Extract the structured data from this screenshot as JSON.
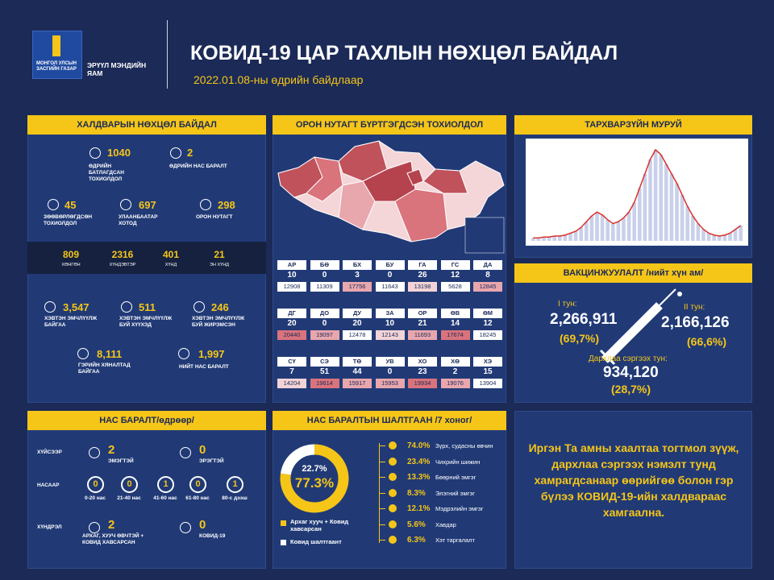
{
  "header": {
    "logo_text": "МОНГОЛ УЛСЫН ЗАСГИЙН ГАЗАР",
    "ministry": "ЭРҮҮЛ МЭНДИЙН ЯАМ",
    "title": "КОВИД-19 ЦАР ТАХЛЫН НӨХЦӨЛ БАЙДАЛ",
    "date": "2022.01.08-ны өдрийн байдлаар"
  },
  "infection": {
    "title": "ХАЛДВАРЫН НӨХЦӨЛ БАЙДАЛ",
    "stats": [
      {
        "value": 1040,
        "label": "ӨДРИЙН БАТЛАГДСАН ТОХИОЛДОЛ"
      },
      {
        "value": 2,
        "label": "ӨДРИЙН НАС БАРАЛТ"
      },
      {
        "value": 45,
        "label": "ЗӨӨВӨРЛӨГДСӨН ТОХИОЛДОЛ"
      },
      {
        "value": 697,
        "label": "УЛААНБААТАР ХОТОД"
      },
      {
        "value": 298,
        "label": "ОРОН НУТАГТ"
      }
    ],
    "severity": [
      {
        "value": 809,
        "label": "ХӨНГӨН"
      },
      {
        "value": 2316,
        "label": "ХҮНДЭВТЭР"
      },
      {
        "value": 401,
        "label": "ХҮНД"
      },
      {
        "value": 21,
        "label": "ЭН ХҮНД"
      }
    ],
    "care": [
      {
        "value": "3,547",
        "label": "ХЭВТЭН ЭМЧЛҮҮЛЖ БАЙГАА"
      },
      {
        "value": 511,
        "label": "ХЭВТЭН ЭМЧЛҮҮЛЖ БУЙ ХҮҮХЭД"
      },
      {
        "value": 246,
        "label": "ХЭВТЭН ЭМЧЛҮҮЛЖ БУЙ ЖИРЭМСЭН"
      },
      {
        "value": "8,111",
        "label": "ГЭРИЙН ХЯНАЛТАД БАЙГАА"
      },
      {
        "value": "1,997",
        "label": "НИЙТ НАС БАРАЛТ"
      }
    ]
  },
  "regions": {
    "title": "ОРОН НУТАГТ БҮРТГЭГДСЭН ТОХИОЛДОЛ",
    "aimags": [
      {
        "code": "АР",
        "cases": 10,
        "total": 12908,
        "color": "#ffffff"
      },
      {
        "code": "БӨ",
        "cases": 0,
        "total": 11309,
        "color": "#ffffff"
      },
      {
        "code": "БХ",
        "cases": 3,
        "total": 17756,
        "color": "#e8a6ad"
      },
      {
        "code": "БУ",
        "cases": 0,
        "total": 11643,
        "color": "#ffffff"
      },
      {
        "code": "ГА",
        "cases": 26,
        "total": 13198,
        "color": "#f3d3d6"
      },
      {
        "code": "ГС",
        "cases": 12,
        "total": 5628,
        "color": "#ffffff"
      },
      {
        "code": "ДА",
        "cases": 8,
        "total": 12845,
        "color": "#e8a6ad"
      },
      {
        "code": "ДГ",
        "cases": 20,
        "total": 20440,
        "color": "#d9737c"
      },
      {
        "code": "ДО",
        "cases": 0,
        "total": 19097,
        "color": "#e8a6ad"
      },
      {
        "code": "ДУ",
        "cases": 20,
        "total": 12478,
        "color": "#ffffff"
      },
      {
        "code": "ЗА",
        "cases": 10,
        "total": 12143,
        "color": "#f3d3d6"
      },
      {
        "code": "ОР",
        "cases": 21,
        "total": 11693,
        "color": "#e8a6ad"
      },
      {
        "code": "ӨВ",
        "cases": 14,
        "total": 17674,
        "color": "#d9737c"
      },
      {
        "code": "ӨМ",
        "cases": 12,
        "total": 18245,
        "color": "#ffffff"
      },
      {
        "code": "СҮ",
        "cases": 7,
        "total": 14204,
        "color": "#f3d3d6"
      },
      {
        "code": "СЭ",
        "cases": 51,
        "total": 19614,
        "color": "#d9737c"
      },
      {
        "code": "ТӨ",
        "cases": 44,
        "total": 15917,
        "color": "#e8a6ad"
      },
      {
        "code": "УВ",
        "cases": 0,
        "total": 15953,
        "color": "#e8a6ad"
      },
      {
        "code": "ХО",
        "cases": 23,
        "total": 19934,
        "color": "#d9737c"
      },
      {
        "code": "ХӨ",
        "cases": 2,
        "total": 19076,
        "color": "#e8a6ad"
      },
      {
        "code": "ХЭ",
        "cases": 15,
        "total": 13904,
        "color": "#ffffff"
      }
    ]
  },
  "curve": {
    "title": "ТАРХВАРЗҮЙН МУРУЙ",
    "type": "bar",
    "ylim": [
      0,
      100
    ],
    "bar_color": "#c9d0ea",
    "line_color": "#d9302c",
    "values": [
      3,
      3,
      4,
      4,
      5,
      5,
      6,
      8,
      10,
      14,
      20,
      26,
      30,
      27,
      22,
      18,
      20,
      24,
      30,
      40,
      55,
      70,
      85,
      95,
      90,
      80,
      70,
      60,
      48,
      36,
      26,
      18,
      12,
      8,
      6,
      5,
      6,
      8,
      12,
      16
    ]
  },
  "vaccination": {
    "title": "ВАКЦИНЖУУЛАЛТ /нийт хүн ам/",
    "doses": [
      {
        "label": "I тун:",
        "value": "2,266,911",
        "share": "(69,7%)"
      },
      {
        "label": "II тун:",
        "value": "2,166,126",
        "share": "(66,6%)"
      },
      {
        "label": "Дархлаа сэргээх тун:",
        "value": "934,120",
        "share": "(28,7%)"
      }
    ]
  },
  "deaths": {
    "title": "НАС БАРАЛТ/өдрөөр/",
    "groups": [
      {
        "label": "ХҮЙСЭЭР",
        "items": [
          {
            "value": 2,
            "label": "ЭМЭГТЭЙ"
          },
          {
            "value": 0,
            "label": "ЭРЭГТЭЙ"
          }
        ]
      },
      {
        "label": "НАСААР",
        "items": [
          {
            "value": 0,
            "label": "0-20 нас"
          },
          {
            "value": 0,
            "label": "21-40 нас"
          },
          {
            "value": 1,
            "label": "41-60 нас"
          },
          {
            "value": 0,
            "label": "61-80 нас"
          },
          {
            "value": 1,
            "label": "80-с дээш"
          }
        ]
      },
      {
        "label": "ХҮНДРЭЛ",
        "items": [
          {
            "value": 2,
            "label": "АРХАГ, ХУУЧ ӨВЧТЭЙ + КОВИД ХАВСАРСАН"
          },
          {
            "value": 0,
            "label": "КОВИД-19"
          }
        ]
      }
    ]
  },
  "causes": {
    "title": "НАС БАРАЛТЫН ШАЛТГААН /7 хоног/",
    "donut": [
      {
        "name": "Архаг хууч + Ковид хавсарсан",
        "color": "#f5c518",
        "value": 77.3,
        "value_label": "77.3%"
      },
      {
        "name": "Ковид шалтгаант",
        "color": "#ffffff",
        "value": 22.7,
        "value_label": "22.7%"
      }
    ],
    "items": [
      {
        "value": "74.0%",
        "label": "Зүрх, судасны өвчин"
      },
      {
        "value": "23.4%",
        "label": "Чихрийн шижин"
      },
      {
        "value": "13.3%",
        "label": "Бөөрний эмгэг"
      },
      {
        "value": "8.3%",
        "label": "Элэгний эмгэг"
      },
      {
        "value": "12.1%",
        "label": "Мэдрэлийн эмгэг"
      },
      {
        "value": "5.6%",
        "label": "Хавдар"
      },
      {
        "value": "6.3%",
        "label": "Хэт таргалалт"
      }
    ]
  },
  "message": "Иргэн Та амны хаалтаа тогтмол зүүж, дархлаа сэргээх нэмэлт тунд хамрагдсанаар өөрийгөө болон гэр бүлээ КОВИД-19-ийн халдвараас хамгаална."
}
